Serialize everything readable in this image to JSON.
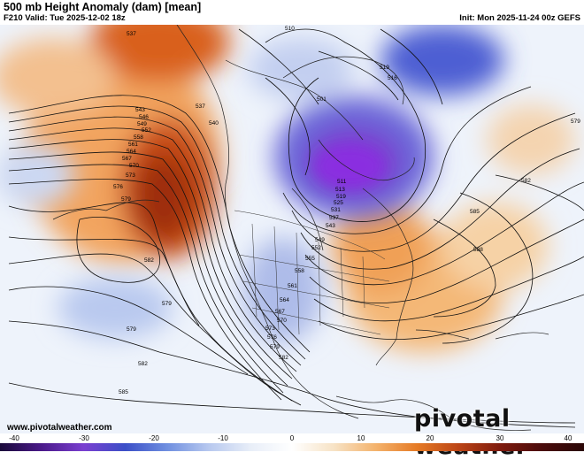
{
  "header": {
    "title": "500 mb Height Anomaly (dam) [mean]",
    "valid": "F210 Valid: Tue 2025-12-02 18z",
    "init": "Init: Mon 2025-11-24 00z GEFS"
  },
  "footer": {
    "site": "www.pivotalweather.com",
    "brand": "pivotal weather"
  },
  "colorbar": {
    "ticks": [
      "-40",
      "-30",
      "-20",
      "-10",
      "0",
      "10",
      "20",
      "30",
      "40"
    ],
    "stops": [
      "#1a0a3a",
      "#4b1a8a",
      "#7a3fd0",
      "#3b4fc7",
      "#6f8fe0",
      "#b7c8ef",
      "#e8eef8",
      "#ffffff",
      "#f7e3c6",
      "#f4b36d",
      "#e57a25",
      "#bb4416",
      "#7e1a0d",
      "#4a0c0c",
      "#2a0606"
    ]
  },
  "contours": {
    "labels": [
      "537",
      "510",
      "519",
      "516",
      "543",
      "546",
      "549",
      "552",
      "558",
      "561",
      "564",
      "567",
      "570",
      "573",
      "576",
      "579",
      "537",
      "540",
      "501",
      "511",
      "513",
      "519",
      "525",
      "531",
      "537",
      "543",
      "549",
      "552",
      "555",
      "558",
      "561",
      "564",
      "567",
      "570",
      "573",
      "576",
      "579",
      "582",
      "585",
      "588",
      "579",
      "582",
      "582",
      "579",
      "579",
      "582",
      "585"
    ]
  }
}
